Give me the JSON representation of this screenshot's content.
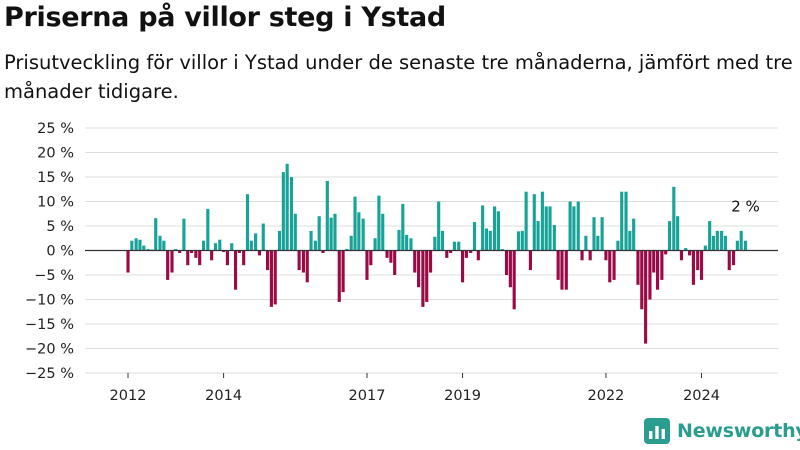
{
  "header": {
    "title": "Priserna på villor steg i Ystad",
    "subtitle": "Prisutveckling för villor i Ystad under de senaste tre månaderna, jämfört med tre månader tidigare."
  },
  "brand": {
    "name": "Newsworthy",
    "logo_icon": "bar-chart-logo-icon",
    "color": "#2a9d8f"
  },
  "colors": {
    "positive": "#17a398",
    "negative": "#9b0a45",
    "zero_line": "#333333",
    "grid": "#dddddd"
  },
  "chart_data": {
    "type": "bar",
    "title": "Priserna på villor steg i Ystad",
    "subtitle": "Prisutveckling för villor i Ystad under de senaste tre månaderna, jämfört med tre månader tidigare.",
    "ylim": [
      -25,
      25
    ],
    "yticks": [
      25,
      20,
      15,
      10,
      5,
      0,
      -5,
      -10,
      -15,
      -20,
      -25
    ],
    "ytick_labels": [
      "25 %",
      "20 %",
      "15 %",
      "10 %",
      "5 %",
      "0 %",
      "−5 %",
      "−10 %",
      "−15 %",
      "−20 %",
      "−25 %"
    ],
    "xrange": [
      2011.1,
      2025.6
    ],
    "xticks": [
      2012,
      2014,
      2017,
      2019,
      2022,
      2024
    ],
    "grid": true,
    "last_value_label": "2 %",
    "series": [
      {
        "values": [
          [
            2012.0,
            -4.5
          ],
          [
            2012.08,
            2.0
          ],
          [
            2012.17,
            2.5
          ],
          [
            2012.25,
            2.2
          ],
          [
            2012.33,
            1.0
          ],
          [
            2012.42,
            0.3
          ],
          [
            2012.5,
            0.2
          ],
          [
            2012.58,
            6.6
          ],
          [
            2012.67,
            3.0
          ],
          [
            2012.75,
            2.0
          ],
          [
            2012.83,
            -6.0
          ],
          [
            2012.92,
            -4.5
          ],
          [
            2013.0,
            0.3
          ],
          [
            2013.08,
            -0.5
          ],
          [
            2013.17,
            6.5
          ],
          [
            2013.25,
            -3.0
          ],
          [
            2013.33,
            -0.5
          ],
          [
            2013.42,
            -1.5
          ],
          [
            2013.5,
            -3.0
          ],
          [
            2013.58,
            2.0
          ],
          [
            2013.67,
            8.5
          ],
          [
            2013.75,
            -2.0
          ],
          [
            2013.83,
            1.5
          ],
          [
            2013.92,
            2.2
          ],
          [
            2014.0,
            -0.3
          ],
          [
            2014.08,
            -3.0
          ],
          [
            2014.17,
            1.5
          ],
          [
            2014.25,
            -8.0
          ],
          [
            2014.33,
            -0.5
          ],
          [
            2014.42,
            -3.0
          ],
          [
            2014.5,
            11.5
          ],
          [
            2014.58,
            2.0
          ],
          [
            2014.67,
            3.5
          ],
          [
            2014.75,
            -1.0
          ],
          [
            2014.83,
            5.5
          ],
          [
            2014.92,
            -4.0
          ],
          [
            2015.0,
            -11.5
          ],
          [
            2015.08,
            -11.0
          ],
          [
            2015.17,
            4.0
          ],
          [
            2015.25,
            16.0
          ],
          [
            2015.33,
            17.7
          ],
          [
            2015.42,
            15.0
          ],
          [
            2015.5,
            7.5
          ],
          [
            2015.58,
            -4.0
          ],
          [
            2015.67,
            -4.5
          ],
          [
            2015.75,
            -6.5
          ],
          [
            2015.83,
            4.0
          ],
          [
            2015.92,
            2.0
          ],
          [
            2016.0,
            7.0
          ],
          [
            2016.08,
            -0.5
          ],
          [
            2016.17,
            14.2
          ],
          [
            2016.25,
            6.7
          ],
          [
            2016.33,
            7.5
          ],
          [
            2016.42,
            -10.5
          ],
          [
            2016.5,
            -8.5
          ],
          [
            2016.58,
            0.3
          ],
          [
            2016.67,
            3.0
          ],
          [
            2016.75,
            11.0
          ],
          [
            2016.83,
            7.8
          ],
          [
            2016.92,
            6.5
          ],
          [
            2017.0,
            -6.0
          ],
          [
            2017.08,
            -3.0
          ],
          [
            2017.17,
            2.5
          ],
          [
            2017.25,
            11.2
          ],
          [
            2017.33,
            7.5
          ],
          [
            2017.42,
            -1.5
          ],
          [
            2017.5,
            -2.5
          ],
          [
            2017.58,
            -5.0
          ],
          [
            2017.67,
            4.2
          ],
          [
            2017.75,
            9.5
          ],
          [
            2017.83,
            3.2
          ],
          [
            2017.92,
            2.5
          ],
          [
            2018.0,
            -4.5
          ],
          [
            2018.08,
            -7.5
          ],
          [
            2018.17,
            -11.5
          ],
          [
            2018.25,
            -10.5
          ],
          [
            2018.33,
            -4.5
          ],
          [
            2018.42,
            2.8
          ],
          [
            2018.5,
            10.0
          ],
          [
            2018.58,
            4.0
          ],
          [
            2018.67,
            -1.5
          ],
          [
            2018.75,
            -0.5
          ],
          [
            2018.83,
            1.8
          ],
          [
            2018.92,
            1.8
          ],
          [
            2019.0,
            -6.5
          ],
          [
            2019.08,
            -1.5
          ],
          [
            2019.17,
            -0.5
          ],
          [
            2019.25,
            5.8
          ],
          [
            2019.33,
            -2.0
          ],
          [
            2019.42,
            9.2
          ],
          [
            2019.5,
            4.5
          ],
          [
            2019.58,
            4.0
          ],
          [
            2019.67,
            9.0
          ],
          [
            2019.75,
            8.0
          ],
          [
            2019.83,
            0.3
          ],
          [
            2019.92,
            -5.0
          ],
          [
            2020.0,
            -7.5
          ],
          [
            2020.08,
            -12.0
          ],
          [
            2020.17,
            3.9
          ],
          [
            2020.25,
            4.0
          ],
          [
            2020.33,
            12.0
          ],
          [
            2020.42,
            -4.0
          ],
          [
            2020.5,
            11.5
          ],
          [
            2020.58,
            6.0
          ],
          [
            2020.67,
            12.0
          ],
          [
            2020.75,
            9.0
          ],
          [
            2020.83,
            9.0
          ],
          [
            2020.92,
            5.2
          ],
          [
            2021.0,
            -6.0
          ],
          [
            2021.08,
            -8.0
          ],
          [
            2021.17,
            -8.0
          ],
          [
            2021.25,
            10.0
          ],
          [
            2021.33,
            9.0
          ],
          [
            2021.42,
            10.0
          ],
          [
            2021.5,
            -2.0
          ],
          [
            2021.58,
            3.0
          ],
          [
            2021.67,
            -2.0
          ],
          [
            2021.75,
            6.8
          ],
          [
            2021.83,
            3.0
          ],
          [
            2021.92,
            6.8
          ],
          [
            2022.0,
            -2.0
          ],
          [
            2022.08,
            -6.5
          ],
          [
            2022.17,
            -6.0
          ],
          [
            2022.25,
            2.0
          ],
          [
            2022.33,
            12.0
          ],
          [
            2022.42,
            12.0
          ],
          [
            2022.5,
            4.0
          ],
          [
            2022.58,
            6.5
          ],
          [
            2022.67,
            -7.0
          ],
          [
            2022.75,
            -12.0
          ],
          [
            2022.83,
            -19.0
          ],
          [
            2022.92,
            -10.0
          ],
          [
            2023.0,
            -4.5
          ],
          [
            2023.08,
            -8.0
          ],
          [
            2023.17,
            -6.0
          ],
          [
            2023.25,
            -0.8
          ],
          [
            2023.33,
            6.0
          ],
          [
            2023.42,
            13.0
          ],
          [
            2023.5,
            7.0
          ],
          [
            2023.58,
            -2.0
          ],
          [
            2023.67,
            0.5
          ],
          [
            2023.75,
            -1.0
          ],
          [
            2023.83,
            -7.0
          ],
          [
            2023.92,
            -4.0
          ],
          [
            2024.0,
            -6.0
          ],
          [
            2024.08,
            1.0
          ],
          [
            2024.17,
            6.0
          ],
          [
            2024.25,
            3.0
          ],
          [
            2024.33,
            4.0
          ],
          [
            2024.42,
            4.0
          ],
          [
            2024.5,
            3.0
          ],
          [
            2024.58,
            -4.0
          ],
          [
            2024.67,
            -3.0
          ],
          [
            2024.75,
            2.0
          ],
          [
            2024.83,
            4.0
          ],
          [
            2024.92,
            2.0
          ]
        ]
      }
    ]
  }
}
